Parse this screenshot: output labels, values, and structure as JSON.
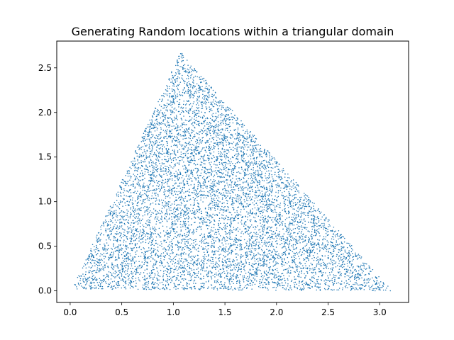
{
  "chart_data": {
    "type": "scatter",
    "title": "Generating Random locations within a triangular domain",
    "xlabel": "",
    "ylabel": "",
    "xlim": [
      -0.13,
      3.28
    ],
    "ylim": [
      -0.13,
      2.8
    ],
    "x_ticks": [
      0.0,
      0.5,
      1.0,
      1.5,
      2.0,
      2.5,
      3.0
    ],
    "x_tick_labels": [
      "0.0",
      "0.5",
      "1.0",
      "1.5",
      "2.0",
      "2.5",
      "3.0"
    ],
    "y_ticks": [
      0.0,
      0.5,
      1.0,
      1.5,
      2.0,
      2.5
    ],
    "y_tick_labels": [
      "0.0",
      "0.5",
      "1.0",
      "1.5",
      "2.0",
      "2.5"
    ],
    "grid": false,
    "legend": "none",
    "marker_color": "#1f77b4",
    "triangle_vertices": [
      [
        0.02,
        0.02
      ],
      [
        1.07,
        2.68
      ],
      [
        3.12,
        0.0
      ]
    ],
    "point_count": 8000,
    "distribution": "uniform random within triangle"
  }
}
